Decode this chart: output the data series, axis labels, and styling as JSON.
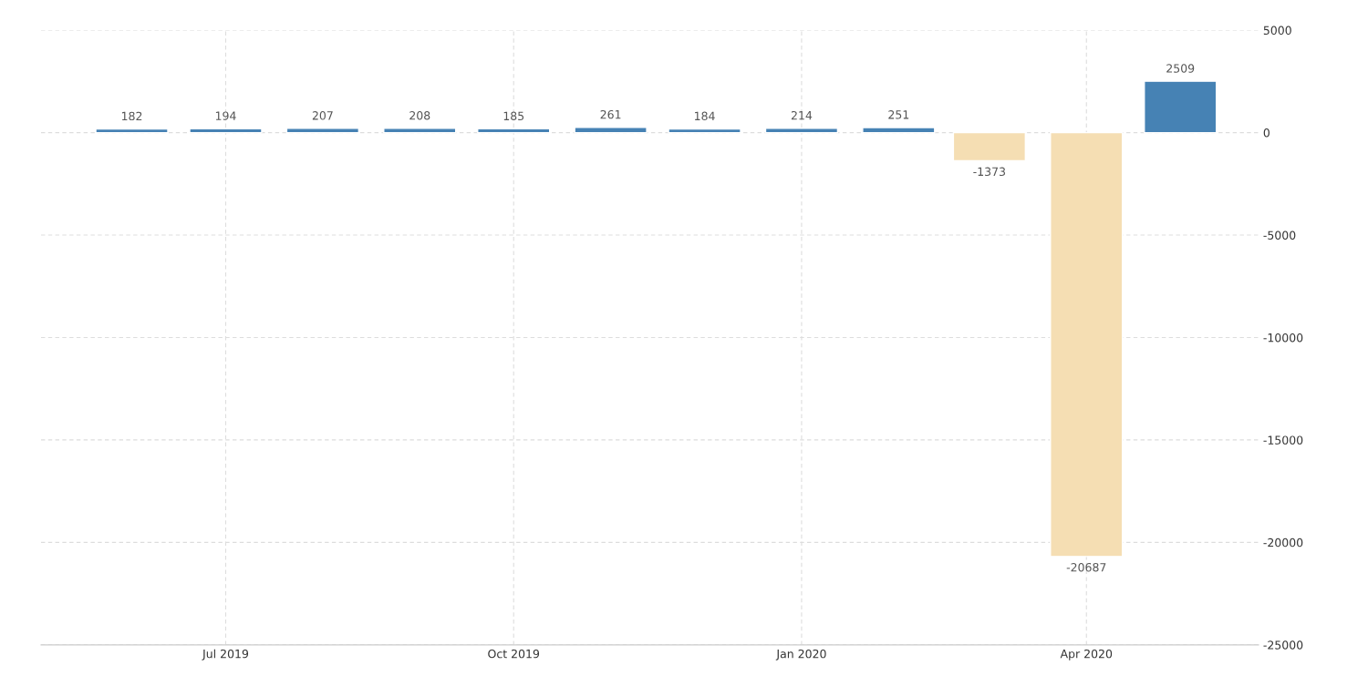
{
  "chart_data": {
    "type": "bar",
    "x": [
      "2019-06",
      "2019-07",
      "2019-08",
      "2019-09",
      "2019-10",
      "2019-11",
      "2019-12",
      "2020-01",
      "2020-02",
      "2020-03",
      "2020-04",
      "2020-05"
    ],
    "values": [
      182,
      194,
      207,
      208,
      185,
      261,
      184,
      214,
      251,
      -1373,
      -20687,
      2509
    ],
    "colors": [
      "#4682b4",
      "#4682b4",
      "#4682b4",
      "#4682b4",
      "#4682b4",
      "#4682b4",
      "#4682b4",
      "#4682b4",
      "#4682b4",
      "#f5deb3",
      "#f5deb3",
      "#4682b4"
    ],
    "xlim": [
      "2019-05-03",
      "2020-05-26"
    ],
    "xticks": [
      {
        "value": "2019-07",
        "label": "Jul 2019"
      },
      {
        "value": "2019-10",
        "label": "Oct 2019"
      },
      {
        "value": "2020-01",
        "label": "Jan 2020"
      },
      {
        "value": "2020-04",
        "label": "Apr 2020"
      }
    ],
    "ylim": [
      -25000,
      5000
    ],
    "yticks": [
      5000,
      0,
      -5000,
      -10000,
      -15000,
      -20000,
      -25000
    ],
    "grid": true,
    "data_labels": true
  }
}
